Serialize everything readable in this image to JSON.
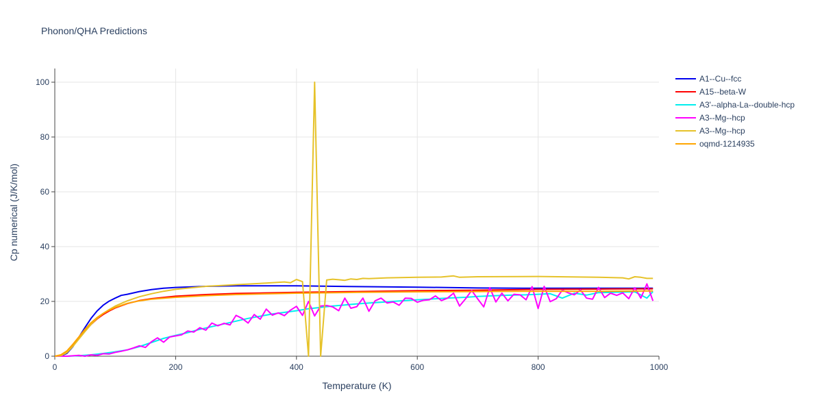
{
  "chart_data": {
    "type": "line",
    "title": "Phonon/QHA Predictions",
    "xlabel": "Temperature (K)",
    "ylabel": "Cp numerical (J/K/mol)",
    "xlim": [
      0,
      1000
    ],
    "ylim": [
      0,
      105
    ],
    "xticks": [
      0,
      200,
      400,
      600,
      800,
      1000
    ],
    "yticks": [
      0,
      20,
      40,
      60,
      80,
      100
    ],
    "grid": true,
    "legend_position": "top-right",
    "series": [
      {
        "name": "A1--Cu--fcc",
        "color": "#0000ee",
        "points": [
          [
            0,
            0
          ],
          [
            10,
            0.1
          ],
          [
            20,
            1.0
          ],
          [
            30,
            3.5
          ],
          [
            40,
            7.0
          ],
          [
            50,
            10.5
          ],
          [
            60,
            13.8
          ],
          [
            70,
            16.5
          ],
          [
            80,
            18.6
          ],
          [
            90,
            20.1
          ],
          [
            100,
            21.2
          ],
          [
            110,
            22.2
          ],
          [
            120,
            22.6
          ],
          [
            140,
            23.6
          ],
          [
            160,
            24.3
          ],
          [
            180,
            24.8
          ],
          [
            200,
            25.1
          ],
          [
            250,
            25.5
          ],
          [
            300,
            25.7
          ],
          [
            400,
            25.7
          ],
          [
            500,
            25.4
          ],
          [
            600,
            25.2
          ],
          [
            700,
            24.9
          ],
          [
            800,
            24.8
          ],
          [
            900,
            24.8
          ],
          [
            990,
            24.8
          ]
        ]
      },
      {
        "name": "A15--beta-W",
        "color": "#ff0000",
        "points": [
          [
            0,
            0
          ],
          [
            10,
            0.3
          ],
          [
            20,
            1.5
          ],
          [
            30,
            3.8
          ],
          [
            40,
            6.5
          ],
          [
            50,
            9.2
          ],
          [
            60,
            11.6
          ],
          [
            70,
            13.6
          ],
          [
            80,
            15.2
          ],
          [
            90,
            16.5
          ],
          [
            100,
            17.6
          ],
          [
            120,
            19.2
          ],
          [
            140,
            20.3
          ],
          [
            160,
            21.0
          ],
          [
            200,
            21.9
          ],
          [
            250,
            22.5
          ],
          [
            300,
            22.9
          ],
          [
            400,
            23.3
          ],
          [
            500,
            23.6
          ],
          [
            600,
            23.9
          ],
          [
            700,
            24.1
          ],
          [
            800,
            24.4
          ],
          [
            900,
            24.5
          ],
          [
            990,
            24.6
          ]
        ]
      },
      {
        "name": "A3'--alpha-La--double-hcp",
        "color": "#00eeee",
        "points": [
          [
            0,
            0
          ],
          [
            20,
            0
          ],
          [
            40,
            0.2
          ],
          [
            60,
            0.5
          ],
          [
            80,
            1.0
          ],
          [
            100,
            1.6
          ],
          [
            120,
            2.3
          ],
          [
            140,
            3.5
          ],
          [
            160,
            5.0
          ],
          [
            180,
            6.5
          ],
          [
            200,
            7.6
          ],
          [
            220,
            8.6
          ],
          [
            240,
            9.8
          ],
          [
            260,
            10.8
          ],
          [
            280,
            11.8
          ],
          [
            300,
            12.8
          ],
          [
            320,
            13.8
          ],
          [
            340,
            14.6
          ],
          [
            360,
            15.4
          ],
          [
            380,
            16.0
          ],
          [
            400,
            16.6
          ],
          [
            420,
            17.3
          ],
          [
            440,
            17.8
          ],
          [
            460,
            18.3
          ],
          [
            480,
            18.7
          ],
          [
            500,
            19.1
          ],
          [
            520,
            19.4
          ],
          [
            540,
            19.7
          ],
          [
            560,
            20.0
          ],
          [
            580,
            20.3
          ],
          [
            600,
            20.6
          ],
          [
            620,
            20.8
          ],
          [
            640,
            21.1
          ],
          [
            660,
            21.3
          ],
          [
            680,
            21.5
          ],
          [
            700,
            21.8
          ],
          [
            720,
            22.0
          ],
          [
            740,
            22.2
          ],
          [
            760,
            22.3
          ],
          [
            780,
            22.4
          ],
          [
            800,
            22.6
          ],
          [
            820,
            22.8
          ],
          [
            840,
            21.2
          ],
          [
            860,
            23.0
          ],
          [
            880,
            22.3
          ],
          [
            900,
            23.2
          ],
          [
            920,
            23.3
          ],
          [
            940,
            23.4
          ],
          [
            960,
            23.5
          ],
          [
            980,
            21.2
          ],
          [
            990,
            23.6
          ]
        ]
      },
      {
        "name": "A3--Mg--hcp",
        "color": "#ff00ff",
        "points": [
          [
            0,
            0
          ],
          [
            20,
            0
          ],
          [
            40,
            0.3
          ],
          [
            50,
            0
          ],
          [
            60,
            0.5
          ],
          [
            70,
            0.3
          ],
          [
            80,
            0.9
          ],
          [
            90,
            0.8
          ],
          [
            100,
            1.4
          ],
          [
            110,
            1.8
          ],
          [
            120,
            2.3
          ],
          [
            130,
            3.0
          ],
          [
            140,
            3.8
          ],
          [
            150,
            3.2
          ],
          [
            160,
            5.3
          ],
          [
            170,
            6.7
          ],
          [
            180,
            5.1
          ],
          [
            190,
            7.0
          ],
          [
            200,
            7.4
          ],
          [
            210,
            7.8
          ],
          [
            220,
            9.2
          ],
          [
            230,
            8.8
          ],
          [
            240,
            10.4
          ],
          [
            250,
            9.5
          ],
          [
            260,
            12.1
          ],
          [
            270,
            11.1
          ],
          [
            280,
            12.0
          ],
          [
            290,
            11.4
          ],
          [
            300,
            14.9
          ],
          [
            310,
            13.8
          ],
          [
            320,
            12.1
          ],
          [
            330,
            15.2
          ],
          [
            340,
            13.5
          ],
          [
            350,
            17.2
          ],
          [
            360,
            15.0
          ],
          [
            370,
            15.8
          ],
          [
            380,
            14.8
          ],
          [
            390,
            16.8
          ],
          [
            400,
            18.2
          ],
          [
            410,
            14.9
          ],
          [
            420,
            20.0
          ],
          [
            430,
            14.7
          ],
          [
            440,
            18.3
          ],
          [
            450,
            18.5
          ],
          [
            460,
            18.0
          ],
          [
            470,
            16.6
          ],
          [
            480,
            21.2
          ],
          [
            490,
            17.5
          ],
          [
            500,
            18.1
          ],
          [
            510,
            21.2
          ],
          [
            520,
            16.4
          ],
          [
            530,
            20.2
          ],
          [
            540,
            21.2
          ],
          [
            550,
            19.4
          ],
          [
            560,
            19.8
          ],
          [
            570,
            18.6
          ],
          [
            580,
            21.2
          ],
          [
            590,
            21.1
          ],
          [
            600,
            19.7
          ],
          [
            610,
            20.4
          ],
          [
            620,
            20.6
          ],
          [
            630,
            22.0
          ],
          [
            640,
            20.3
          ],
          [
            650,
            21.2
          ],
          [
            660,
            23.0
          ],
          [
            670,
            18.3
          ],
          [
            680,
            21.0
          ],
          [
            690,
            24.0
          ],
          [
            700,
            20.9
          ],
          [
            710,
            18.0
          ],
          [
            720,
            25.0
          ],
          [
            730,
            19.8
          ],
          [
            740,
            23.0
          ],
          [
            750,
            20.2
          ],
          [
            760,
            22.6
          ],
          [
            770,
            22.4
          ],
          [
            780,
            20.6
          ],
          [
            790,
            25.4
          ],
          [
            800,
            17.4
          ],
          [
            810,
            25.5
          ],
          [
            820,
            19.9
          ],
          [
            830,
            21.0
          ],
          [
            840,
            24.1
          ],
          [
            850,
            23.1
          ],
          [
            860,
            22.4
          ],
          [
            870,
            24.2
          ],
          [
            880,
            21.2
          ],
          [
            890,
            20.8
          ],
          [
            900,
            25.1
          ],
          [
            910,
            21.4
          ],
          [
            920,
            23.0
          ],
          [
            930,
            22.2
          ],
          [
            940,
            23.1
          ],
          [
            950,
            21.0
          ],
          [
            960,
            25.0
          ],
          [
            970,
            21.2
          ],
          [
            980,
            26.4
          ],
          [
            990,
            20.2
          ]
        ]
      },
      {
        "name": "A3--Mg--hcp",
        "color": "#e6c229",
        "points": [
          [
            0,
            0
          ],
          [
            10,
            0.2
          ],
          [
            20,
            1.3
          ],
          [
            30,
            3.6
          ],
          [
            40,
            6.3
          ],
          [
            50,
            9.0
          ],
          [
            60,
            11.6
          ],
          [
            70,
            13.8
          ],
          [
            80,
            15.6
          ],
          [
            90,
            17.0
          ],
          [
            100,
            18.3
          ],
          [
            120,
            20.2
          ],
          [
            140,
            21.7
          ],
          [
            160,
            22.8
          ],
          [
            180,
            23.7
          ],
          [
            200,
            24.4
          ],
          [
            250,
            25.5
          ],
          [
            300,
            26.1
          ],
          [
            350,
            26.7
          ],
          [
            380,
            27.1
          ],
          [
            390,
            26.8
          ],
          [
            400,
            28.0
          ],
          [
            410,
            27.2
          ],
          [
            420,
            0
          ],
          [
            430,
            100
          ],
          [
            440,
            0
          ],
          [
            450,
            27.8
          ],
          [
            460,
            28.1
          ],
          [
            470,
            27.9
          ],
          [
            480,
            27.7
          ],
          [
            490,
            28.2
          ],
          [
            500,
            28.0
          ],
          [
            510,
            28.4
          ],
          [
            520,
            28.3
          ],
          [
            550,
            28.6
          ],
          [
            600,
            28.8
          ],
          [
            640,
            28.9
          ],
          [
            660,
            29.3
          ],
          [
            670,
            28.8
          ],
          [
            700,
            29.0
          ],
          [
            800,
            29.1
          ],
          [
            900,
            28.8
          ],
          [
            940,
            28.6
          ],
          [
            950,
            28.2
          ],
          [
            960,
            29.0
          ],
          [
            970,
            28.8
          ],
          [
            980,
            28.4
          ],
          [
            990,
            28.4
          ]
        ]
      },
      {
        "name": "oqmd-1214935",
        "color": "#ffa500",
        "points": [
          [
            0,
            0
          ],
          [
            10,
            0.5
          ],
          [
            20,
            1.9
          ],
          [
            30,
            4.4
          ],
          [
            40,
            7.1
          ],
          [
            50,
            9.8
          ],
          [
            60,
            12.2
          ],
          [
            70,
            14.1
          ],
          [
            80,
            15.6
          ],
          [
            90,
            16.8
          ],
          [
            100,
            17.8
          ],
          [
            120,
            19.3
          ],
          [
            140,
            20.2
          ],
          [
            160,
            20.8
          ],
          [
            200,
            21.5
          ],
          [
            250,
            22.1
          ],
          [
            300,
            22.5
          ],
          [
            400,
            23.0
          ],
          [
            500,
            23.3
          ],
          [
            600,
            23.5
          ],
          [
            700,
            23.6
          ],
          [
            800,
            23.7
          ],
          [
            900,
            23.7
          ],
          [
            990,
            23.8
          ]
        ]
      }
    ]
  }
}
